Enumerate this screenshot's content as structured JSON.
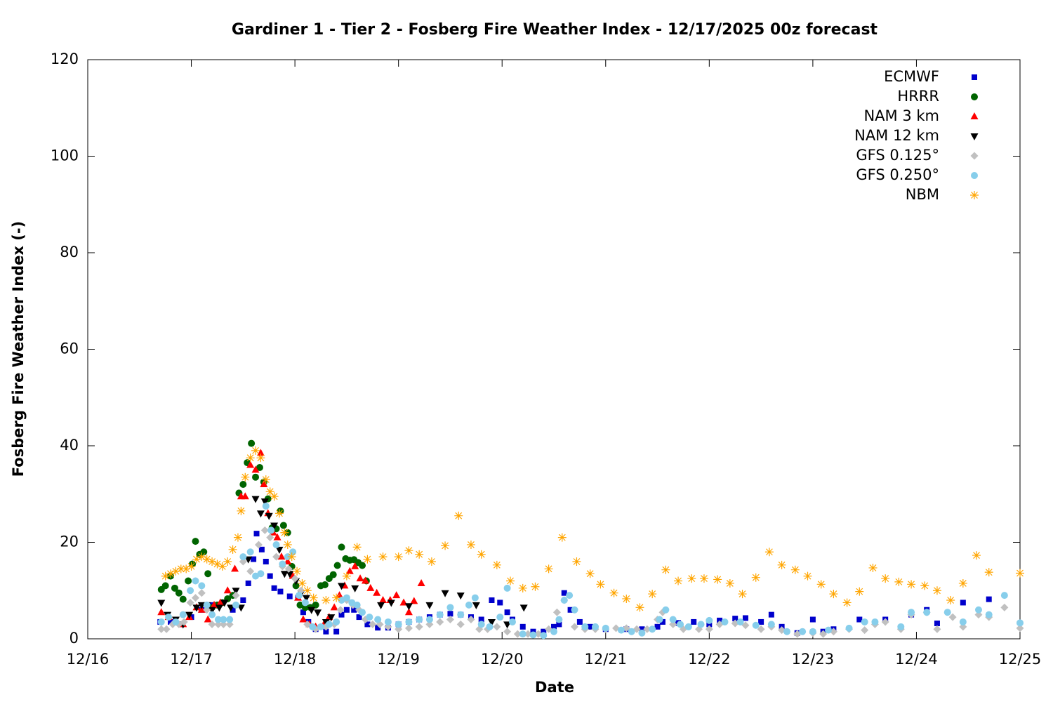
{
  "chart_data": {
    "type": "scatter",
    "title": "Gardiner 1 - Tier 2 - Fosberg Fire Weather Index - 12/17/2025 00z forecast",
    "x_label": "Date",
    "y_label": "Fosberg Fire Weather Index (-)",
    "xlim": [
      0,
      9
    ],
    "ylim": [
      0,
      120
    ],
    "xticks": [
      {
        "value": 0,
        "label": "12/16"
      },
      {
        "value": 1,
        "label": "12/17"
      },
      {
        "value": 2,
        "label": "12/18"
      },
      {
        "value": 3,
        "label": "12/19"
      },
      {
        "value": 4,
        "label": "12/20"
      },
      {
        "value": 5,
        "label": "12/21"
      },
      {
        "value": 6,
        "label": "12/22"
      },
      {
        "value": 7,
        "label": "12/23"
      },
      {
        "value": 8,
        "label": "12/24"
      },
      {
        "value": 9,
        "label": "12/25"
      }
    ],
    "yticks": [
      0,
      20,
      40,
      60,
      80,
      100,
      120
    ],
    "legend": "upper right",
    "series": [
      {
        "name": "ECMWF",
        "color": "#0000cc",
        "marker": "square",
        "x": [
          0.7,
          0.8,
          0.9,
          1.0,
          1.1,
          1.2,
          1.3,
          1.4,
          1.5,
          1.55,
          1.6,
          1.63,
          1.68,
          1.72,
          1.76,
          1.8,
          1.86,
          1.95,
          2.03,
          2.08,
          2.13,
          2.2,
          2.3,
          2.4,
          2.45,
          2.5,
          2.57,
          2.62,
          2.7,
          2.8,
          2.9,
          3.0,
          3.1,
          3.2,
          3.3,
          3.4,
          3.5,
          3.6,
          3.7,
          3.8,
          3.9,
          3.98,
          4.05,
          4.1,
          4.2,
          4.3,
          4.4,
          4.5,
          4.55,
          4.6,
          4.66,
          4.75,
          4.85,
          5.0,
          5.2,
          5.35,
          5.5,
          5.55,
          5.7,
          5.85,
          6.0,
          6.1,
          6.25,
          6.35,
          6.5,
          6.6,
          6.7,
          6.85,
          7.0,
          7.1,
          7.2,
          7.45,
          7.7,
          7.95,
          8.1,
          8.2,
          8.45,
          8.7
        ],
        "values": [
          3.5,
          3.5,
          3,
          4.5,
          6,
          7,
          7.5,
          6,
          8,
          11.5,
          16.5,
          21.8,
          18.5,
          16,
          13,
          10.5,
          9.8,
          8.8,
          8.5,
          5.5,
          3.5,
          2,
          1.5,
          1.5,
          5,
          6,
          6,
          4.5,
          3,
          2.3,
          2.3,
          3,
          3.5,
          4,
          4.5,
          5,
          5.2,
          5,
          4.5,
          4,
          8,
          7.5,
          5.5,
          4,
          2.5,
          1.5,
          1.5,
          2.5,
          3,
          9.5,
          6,
          3.5,
          2.5,
          2,
          2,
          2,
          2.5,
          3.5,
          3.3,
          3.5,
          3,
          3.8,
          4.2,
          4.3,
          3.5,
          5,
          2.5,
          1.2,
          4,
          1.5,
          2,
          4,
          4,
          5,
          6,
          3.2,
          7.5,
          8.2
        ]
      },
      {
        "name": "HRRR",
        "color": "#006400",
        "marker": "circle",
        "x": [
          0.71,
          0.75,
          0.8,
          0.84,
          0.88,
          0.92,
          0.97,
          1.01,
          1.04,
          1.08,
          1.12,
          1.16,
          1.2,
          1.25,
          1.3,
          1.35,
          1.4,
          1.46,
          1.5,
          1.54,
          1.58,
          1.62,
          1.66,
          1.7,
          1.74,
          1.78,
          1.82,
          1.86,
          1.89,
          1.93,
          1.97,
          2.01,
          2.05,
          2.1,
          2.15,
          2.2,
          2.25,
          2.29,
          2.33,
          2.37,
          2.41,
          2.45,
          2.49,
          2.53,
          2.57,
          2.61,
          2.65,
          2.69
        ],
        "values": [
          10.2,
          11,
          13,
          10.5,
          9.5,
          8.2,
          12,
          15.5,
          20.2,
          17.5,
          18,
          13.5,
          6.5,
          7,
          7.5,
          8.3,
          9,
          30.2,
          32,
          36.5,
          40.5,
          33.5,
          35.5,
          32.5,
          29,
          23,
          22.8,
          26.5,
          23.5,
          22,
          15,
          11,
          7,
          6.5,
          6.5,
          7,
          11,
          11.2,
          12.5,
          13.3,
          15.2,
          19,
          16.6,
          16.3,
          16.4,
          15.8,
          15.2,
          12
        ]
      },
      {
        "name": "NAM 3 km",
        "color": "#ff0000",
        "marker": "triangle",
        "x": [
          0.71,
          0.78,
          0.85,
          0.92,
          0.98,
          1.05,
          1.1,
          1.16,
          1.22,
          1.28,
          1.35,
          1.42,
          1.48,
          1.52,
          1.57,
          1.62,
          1.67,
          1.7,
          1.74,
          1.79,
          1.83,
          1.87,
          1.93,
          1.98,
          2.03,
          2.08,
          2.14,
          2.2,
          2.28,
          2.33,
          2.38,
          2.43,
          2.48,
          2.53,
          2.58,
          2.63,
          2.68,
          2.73,
          2.79,
          2.85,
          2.92,
          2.98,
          3.05,
          3.1,
          3.15,
          3.22
        ],
        "values": [
          5.5,
          4.5,
          3.5,
          3,
          4.5,
          6.5,
          6,
          4,
          7,
          7.5,
          10,
          14.5,
          29.5,
          29.5,
          36,
          35,
          38.5,
          32,
          26,
          22,
          21,
          17,
          16,
          13,
          8.5,
          4,
          3,
          2.5,
          3,
          4.5,
          6.5,
          9,
          11,
          14,
          15,
          12.5,
          12,
          10.5,
          9.5,
          8,
          8,
          9,
          7.5,
          5.5,
          7.8,
          11.5
        ]
      },
      {
        "name": "NAM 12 km",
        "color": "#000000",
        "marker": "triangle-down",
        "x": [
          0.71,
          0.77,
          0.85,
          0.92,
          0.98,
          1.05,
          1.1,
          1.15,
          1.2,
          1.27,
          1.32,
          1.38,
          1.43,
          1.48,
          1.55,
          1.62,
          1.67,
          1.71,
          1.75,
          1.8,
          1.85,
          1.9,
          1.95,
          2.01,
          2.06,
          2.11,
          2.16,
          2.22,
          2.3,
          2.35,
          2.45,
          2.58,
          2.83,
          2.93,
          3.1,
          3.3,
          3.45,
          3.6,
          3.75,
          3.9,
          4.05,
          4.21
        ],
        "values": [
          7.5,
          5,
          4,
          3,
          5,
          6.5,
          7,
          7,
          6,
          6.5,
          7.5,
          6.5,
          10,
          6.5,
          16.5,
          29,
          26,
          28.5,
          25.5,
          23.5,
          18.5,
          13.5,
          13.5,
          12,
          9.5,
          8.5,
          6,
          5.5,
          3.5,
          4.5,
          11,
          10.5,
          7,
          7.5,
          6.8,
          7,
          9.5,
          9,
          7,
          3.5,
          3,
          6.5
        ]
      },
      {
        "name": "GFS 0.125°",
        "color": "#c0c0c0",
        "marker": "diamond",
        "x": [
          0.71,
          0.76,
          0.82,
          0.88,
          0.93,
          0.99,
          1.04,
          1.1,
          1.15,
          1.2,
          1.26,
          1.31,
          1.37,
          1.43,
          1.5,
          1.57,
          1.65,
          1.71,
          1.76,
          1.82,
          1.88,
          1.94,
          2.0,
          2.06,
          2.12,
          2.2,
          2.3,
          2.38,
          2.44,
          2.5,
          2.56,
          2.62,
          2.68,
          2.75,
          2.82,
          2.9,
          3.0,
          3.1,
          3.2,
          3.3,
          3.4,
          3.5,
          3.6,
          3.7,
          3.78,
          3.86,
          3.95,
          4.05,
          4.15,
          4.25,
          4.35,
          4.45,
          4.53,
          4.6,
          4.7,
          4.8,
          4.9,
          5.0,
          5.1,
          5.2,
          5.3,
          5.4,
          5.5,
          5.55,
          5.65,
          5.75,
          5.9,
          6.0,
          6.1,
          6.25,
          6.35,
          6.5,
          6.6,
          6.7,
          6.85,
          7.0,
          7.1,
          7.2,
          7.35,
          7.5,
          7.6,
          7.7,
          7.85,
          7.95,
          8.1,
          8.2,
          8.35,
          8.45,
          8.6,
          8.7,
          8.85,
          9.0
        ],
        "values": [
          2,
          2,
          3,
          3,
          3.5,
          7.5,
          8.5,
          9.5,
          6,
          3,
          3,
          3,
          3,
          9,
          16,
          14,
          19.5,
          22.5,
          21,
          17,
          15,
          14.5,
          12.5,
          10,
          3,
          2,
          2.5,
          3,
          6,
          8,
          7,
          6,
          4,
          3,
          3,
          2.5,
          2,
          2.2,
          2.5,
          3,
          3.5,
          4,
          3,
          4,
          2,
          2,
          2.5,
          1.5,
          1,
          1,
          1,
          2,
          5.5,
          8,
          2.5,
          2,
          2,
          2,
          2.2,
          2.2,
          2,
          2,
          4,
          5.5,
          3,
          2,
          2,
          2,
          3,
          3.2,
          2.8,
          2,
          2.5,
          1.8,
          1,
          1.2,
          1,
          1.5,
          2,
          1.8,
          3,
          3.5,
          2,
          5,
          5.5,
          2,
          4.5,
          2.5,
          5,
          4.5,
          6.5,
          2.2
        ]
      },
      {
        "name": "GFS 0.250°",
        "color": "#87ceeb",
        "marker": "circle",
        "x": [
          0.71,
          0.78,
          0.85,
          0.92,
          0.99,
          1.04,
          1.1,
          1.15,
          1.2,
          1.26,
          1.31,
          1.37,
          1.43,
          1.5,
          1.57,
          1.62,
          1.67,
          1.72,
          1.77,
          1.82,
          1.88,
          1.93,
          1.98,
          2.04,
          2.1,
          2.17,
          2.25,
          2.33,
          2.4,
          2.45,
          2.5,
          2.55,
          2.6,
          2.65,
          2.72,
          2.8,
          2.9,
          3.0,
          3.1,
          3.2,
          3.3,
          3.4,
          3.5,
          3.6,
          3.68,
          3.74,
          3.8,
          3.88,
          3.98,
          4.05,
          4.1,
          4.2,
          4.3,
          4.4,
          4.5,
          4.55,
          4.6,
          4.65,
          4.7,
          4.8,
          4.9,
          5.0,
          5.15,
          5.25,
          5.35,
          5.45,
          5.52,
          5.58,
          5.65,
          5.72,
          5.8,
          5.92,
          6.0,
          6.15,
          6.3,
          6.45,
          6.6,
          6.75,
          6.9,
          7.0,
          7.15,
          7.35,
          7.5,
          7.6,
          7.85,
          7.95,
          8.1,
          8.3,
          8.45,
          8.6,
          8.7,
          8.85,
          9.0
        ],
        "values": [
          3.5,
          4.5,
          3.5,
          5,
          10,
          12,
          11,
          7,
          5,
          4,
          4,
          4,
          7,
          17,
          18,
          13,
          13.5,
          27.5,
          22.5,
          19.5,
          15.5,
          17,
          18,
          9,
          7.5,
          2.5,
          2.5,
          3,
          3.5,
          8,
          8.5,
          7.5,
          7,
          5.5,
          4.5,
          4,
          3.5,
          3,
          3.5,
          4,
          4,
          5,
          6.5,
          5,
          7,
          8.5,
          3,
          2.5,
          4.5,
          10.5,
          3.5,
          1,
          0.8,
          0.7,
          1.5,
          4,
          8,
          9,
          6,
          2.5,
          2.5,
          2.2,
          1.8,
          1.5,
          1.2,
          2,
          4,
          6,
          4,
          3,
          2.5,
          3,
          3.8,
          3.5,
          3.5,
          2.8,
          3,
          1.5,
          1.5,
          1.5,
          1.8,
          2.2,
          3.5,
          3.5,
          2.5,
          5.5,
          5.5,
          5.5,
          3.5,
          6,
          5,
          9,
          3.3
        ]
      },
      {
        "name": "NBM",
        "color": "#ffa500",
        "marker": "asterisk",
        "x": [
          0.75,
          0.8,
          0.85,
          0.9,
          0.95,
          1.0,
          1.05,
          1.1,
          1.15,
          1.2,
          1.25,
          1.3,
          1.35,
          1.4,
          1.45,
          1.48,
          1.52,
          1.57,
          1.62,
          1.67,
          1.72,
          1.76,
          1.8,
          1.85,
          1.9,
          1.93,
          1.97,
          2.02,
          2.07,
          2.12,
          2.18,
          2.3,
          2.4,
          2.5,
          2.6,
          2.7,
          2.85,
          3.0,
          3.1,
          3.2,
          3.32,
          3.45,
          3.58,
          3.7,
          3.8,
          3.95,
          4.08,
          4.2,
          4.32,
          4.45,
          4.58,
          4.72,
          4.85,
          4.95,
          5.08,
          5.2,
          5.33,
          5.45,
          5.58,
          5.7,
          5.83,
          5.95,
          6.08,
          6.2,
          6.32,
          6.45,
          6.58,
          6.7,
          6.83,
          6.95,
          7.08,
          7.2,
          7.33,
          7.45,
          7.58,
          7.7,
          7.83,
          7.95,
          8.08,
          8.2,
          8.33,
          8.45,
          8.58,
          8.7,
          9.0
        ],
        "values": [
          13,
          13.5,
          14,
          14.5,
          14.5,
          15,
          16.5,
          17,
          16.5,
          16,
          15.5,
          15,
          16,
          18.5,
          21,
          26.5,
          33.5,
          37.5,
          39,
          37.5,
          33,
          30.5,
          29.5,
          26,
          22,
          19.5,
          17,
          14,
          11.5,
          10,
          8.5,
          8,
          8.5,
          13,
          19,
          16.5,
          17,
          17,
          18.3,
          17.5,
          16,
          19.3,
          25.5,
          19.5,
          17.5,
          15.3,
          12,
          10.5,
          10.8,
          14.5,
          21,
          16,
          13.5,
          11.3,
          9.5,
          8.3,
          6.5,
          9.3,
          14.3,
          12,
          12.5,
          12.5,
          12.3,
          11.5,
          9.3,
          12.7,
          18,
          15.3,
          14.3,
          13,
          11.3,
          9.3,
          7.5,
          9.8,
          14.7,
          12.5,
          11.8,
          11.3,
          11,
          10,
          8,
          11.5,
          17.3,
          13.8,
          13.6
        ]
      }
    ]
  }
}
